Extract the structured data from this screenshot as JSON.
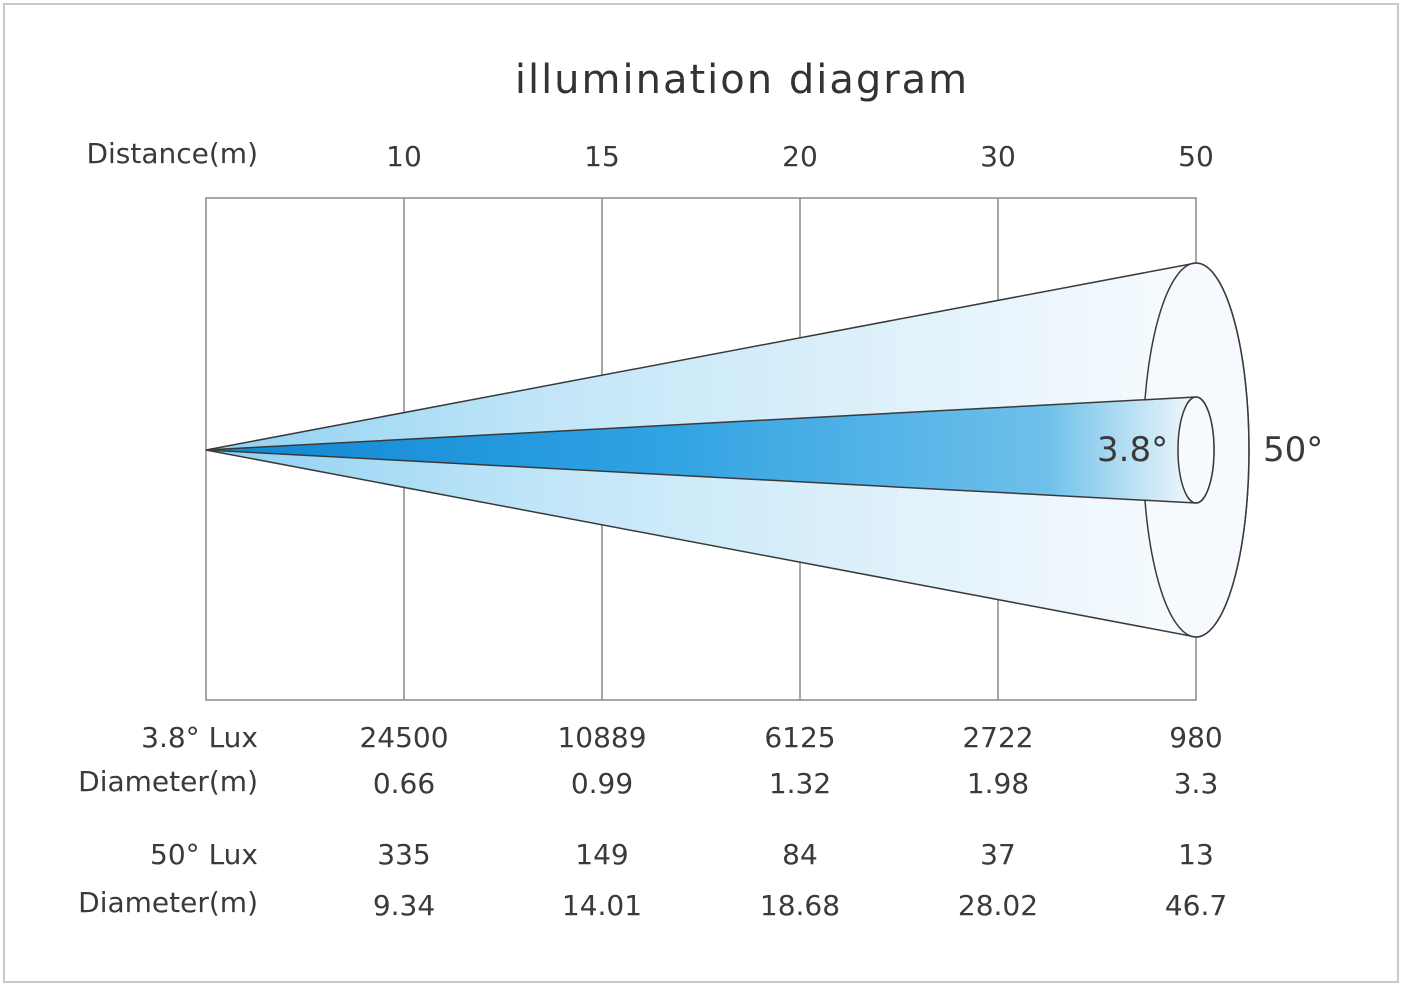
{
  "title": "illumination diagram",
  "distance_label": "Distance(m)",
  "distances": [
    "10",
    "15",
    "20",
    "30",
    "50"
  ],
  "narrow": {
    "angle_label": "3.8°",
    "lux_label": "3.8° Lux",
    "lux": [
      "24500",
      "10889",
      "6125",
      "2722",
      "980"
    ],
    "diameter_label": "Diameter(m)",
    "diameter": [
      "0.66",
      "0.99",
      "1.32",
      "1.98",
      "3.3"
    ]
  },
  "wide": {
    "angle_label": "50°",
    "lux_label": "50° Lux",
    "lux": [
      "335",
      "149",
      "84",
      "37",
      "13"
    ],
    "diameter_label": "Diameter(m)",
    "diameter": [
      "9.34",
      "14.01",
      "18.68",
      "28.02",
      "46.7"
    ]
  },
  "colors": {
    "beam_core": "#1a8fd8",
    "beam_light": "#bfe3f7",
    "grid": "#8a8a8a",
    "border": "#c9c9c9"
  }
}
